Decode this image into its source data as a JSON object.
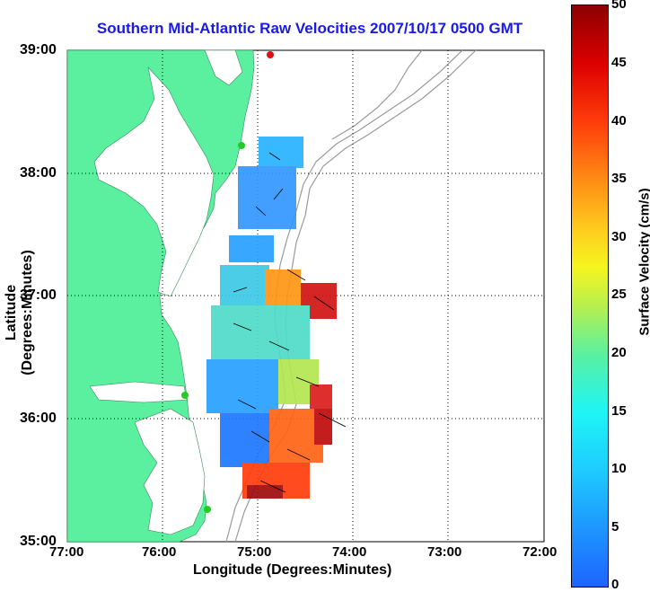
{
  "title": "Southern Mid-Atlantic Raw Velocities 2007/10/17 0500 GMT",
  "axes": {
    "xlabel": "Longitude (Degrees:Minutes)",
    "ylabel": "Latitude (Degrees:Minutes)",
    "x_ticks": [
      "77:00",
      "76:00",
      "75:00",
      "74:00",
      "73:00",
      "72:00"
    ],
    "y_ticks": [
      "39:00",
      "38:00",
      "37:00",
      "36:00",
      "35:00"
    ]
  },
  "colorbar": {
    "label": "Surface Velocity (cm/s)",
    "ticks": [
      "50",
      "45",
      "40",
      "35",
      "30",
      "25",
      "20",
      "15",
      "10",
      "5",
      "0"
    ]
  },
  "colors": {
    "title": "#1a1ae6",
    "land": "#5af0a0",
    "station": "#22cc22",
    "station_red": "#dd1111"
  }
}
